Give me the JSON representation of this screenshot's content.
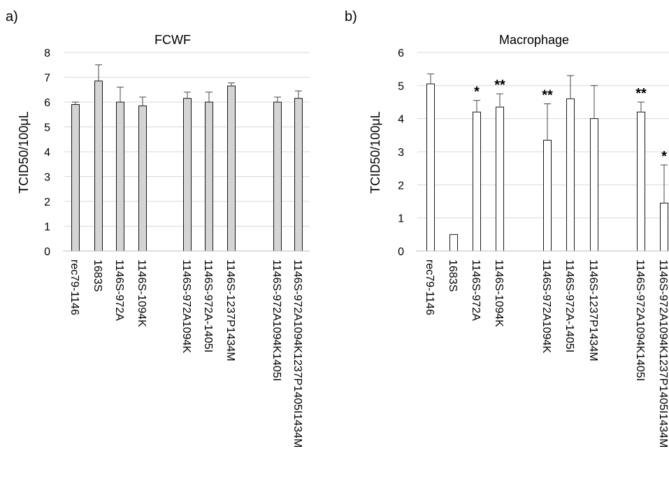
{
  "panels": [
    {
      "letter": "a)",
      "title": "FCWF",
      "ylabel": "TCID50/100μL"
    },
    {
      "letter": "b)",
      "title": "Macrophage",
      "ylabel": "TCID50/100μL"
    }
  ],
  "chart_data": [
    {
      "type": "bar",
      "title": "FCWF",
      "ylabel": "TCID50/100μL",
      "ylim": [
        0,
        8
      ],
      "yticks": [
        0,
        1,
        2,
        3,
        4,
        5,
        6,
        7,
        8
      ],
      "grid": true,
      "bar_color": "#d4d4d4",
      "categories": [
        "rec79-1146",
        "1683S",
        "1146S-972A",
        "1146S-1094K",
        "",
        "1146S-972A1094K",
        "1146S-972A-1405I",
        "1146S-1237P1434M",
        "",
        "1146S-972A1094K1405I",
        "1146S-972A1094K1237P1405I1434M"
      ],
      "values": [
        5.9,
        6.85,
        6.0,
        5.85,
        null,
        6.15,
        6.0,
        6.65,
        null,
        6.0,
        6.15
      ],
      "errors": [
        0.1,
        0.65,
        0.6,
        0.35,
        null,
        0.25,
        0.4,
        0.12,
        null,
        0.2,
        0.3
      ],
      "annotations": [
        "",
        "",
        "",
        "",
        "",
        "",
        "",
        "",
        "",
        "",
        ""
      ]
    },
    {
      "type": "bar",
      "title": "Macrophage",
      "ylabel": "TCID50/100μL",
      "ylim": [
        0,
        6
      ],
      "yticks": [
        0,
        1,
        2,
        3,
        4,
        5,
        6
      ],
      "grid": true,
      "bar_color": "#ffffff",
      "categories": [
        "rec79-1146",
        "1683S",
        "1146S-972A",
        "1146S-1094K",
        "",
        "1146S-972A1094K",
        "1146S-972A-1405I",
        "1146S-1237P1434M",
        "",
        "1146S-972A1094K1405I",
        "1146S-972A1094K1237P1405I1434M"
      ],
      "values": [
        5.05,
        0.5,
        4.2,
        4.35,
        null,
        3.35,
        4.6,
        4.0,
        null,
        4.2,
        1.45
      ],
      "errors": [
        0.3,
        0,
        0.35,
        0.4,
        null,
        1.1,
        0.7,
        1.0,
        null,
        0.3,
        1.15
      ],
      "annotations": [
        "",
        "",
        "*",
        "**",
        "",
        "**",
        "",
        "",
        "",
        "**",
        "*"
      ]
    }
  ]
}
